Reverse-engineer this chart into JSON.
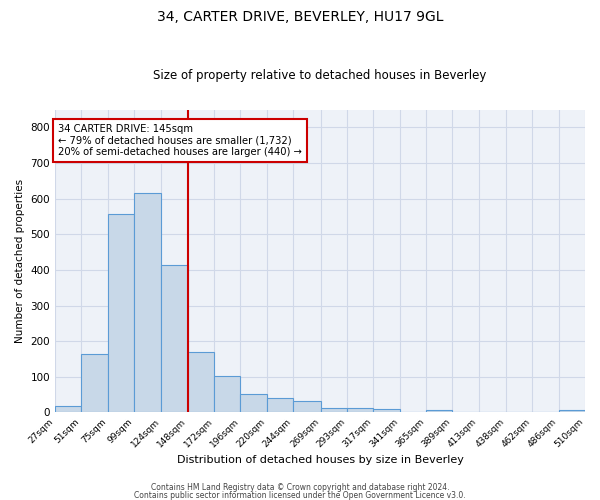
{
  "title": "34, CARTER DRIVE, BEVERLEY, HU17 9GL",
  "subtitle": "Size of property relative to detached houses in Beverley",
  "xlabel": "Distribution of detached houses by size in Beverley",
  "ylabel": "Number of detached properties",
  "bar_color": "#c8d8e8",
  "bar_edge_color": "#5b9bd5",
  "bins": [
    "27sqm",
    "51sqm",
    "75sqm",
    "99sqm",
    "124sqm",
    "148sqm",
    "172sqm",
    "196sqm",
    "220sqm",
    "244sqm",
    "269sqm",
    "293sqm",
    "317sqm",
    "341sqm",
    "365sqm",
    "389sqm",
    "413sqm",
    "438sqm",
    "462sqm",
    "486sqm",
    "510sqm"
  ],
  "values": [
    18,
    165,
    558,
    615,
    413,
    170,
    103,
    53,
    42,
    32,
    14,
    13,
    10,
    0,
    8,
    0,
    0,
    0,
    0,
    8
  ],
  "vline_x": 148,
  "vline_color": "#cc0000",
  "annotation_text": "34 CARTER DRIVE: 145sqm\n← 79% of detached houses are smaller (1,732)\n20% of semi-detached houses are larger (440) →",
  "annotation_box_color": "white",
  "annotation_box_edge_color": "#cc0000",
  "ylim": [
    0,
    850
  ],
  "yticks": [
    0,
    100,
    200,
    300,
    400,
    500,
    600,
    700,
    800
  ],
  "grid_color": "#d0d8e8",
  "bg_color": "#eef2f8",
  "footer_line1": "Contains HM Land Registry data © Crown copyright and database right 2024.",
  "footer_line2": "Contains public sector information licensed under the Open Government Licence v3.0."
}
